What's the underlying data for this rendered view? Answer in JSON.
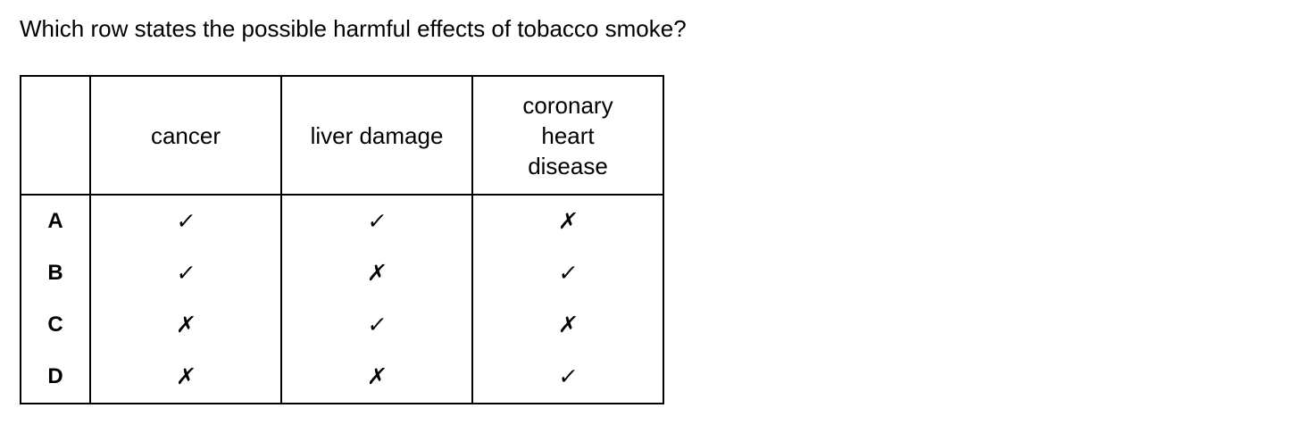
{
  "question": "Which row states the possible harmful effects of tobacco smoke?",
  "table": {
    "headers": [
      "",
      "cancer",
      "liver damage",
      "coronary\nheart\ndisease"
    ],
    "rows": [
      {
        "label": "A",
        "cells": [
          "✓",
          "✓",
          "✗"
        ]
      },
      {
        "label": "B",
        "cells": [
          "✓",
          "✗",
          "✓"
        ]
      },
      {
        "label": "C",
        "cells": [
          "✗",
          "✓",
          "✗"
        ]
      },
      {
        "label": "D",
        "cells": [
          "✗",
          "✗",
          "✓"
        ]
      }
    ]
  }
}
